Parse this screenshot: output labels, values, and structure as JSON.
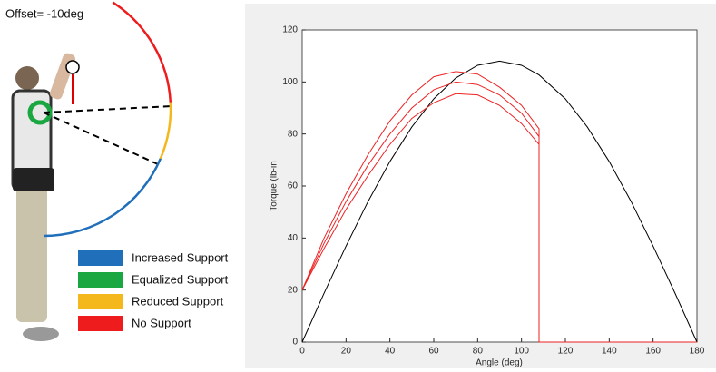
{
  "illustration": {
    "offset_label": "Offset= -10deg",
    "legend": [
      {
        "label": "Increased Support",
        "color": "#1f6fba"
      },
      {
        "label": "Equalized Support",
        "color": "#1aa640"
      },
      {
        "label": "Reduced Support",
        "color": "#f4b81c"
      },
      {
        "label": "No Support",
        "color": "#ee1c1c"
      }
    ]
  },
  "chart_data": {
    "type": "line",
    "xlabel": "Angle (deg)",
    "ylabel": "Torque (lb-in",
    "x": [
      0,
      10,
      20,
      30,
      40,
      50,
      60,
      70,
      80,
      90,
      100,
      108,
      108,
      120,
      130,
      140,
      150,
      160,
      170,
      180
    ],
    "series": [
      {
        "color": "#000000",
        "values": [
          0,
          18.8,
          36.9,
          54,
          69.4,
          82.7,
          93.5,
          101.5,
          106.4,
          108,
          106.4,
          102.7,
          102.7,
          93.5,
          82.7,
          69.4,
          54,
          36.9,
          18.8,
          0
        ]
      },
      {
        "color": "#ee2222",
        "values": [
          20,
          40,
          57,
          72,
          85,
          95,
          102,
          104,
          103,
          98,
          91,
          82,
          0,
          0,
          0,
          0,
          0,
          0,
          0,
          0
        ]
      },
      {
        "color": "#ee2222",
        "values": [
          20,
          38,
          54,
          68,
          80,
          90,
          97,
          100,
          99,
          95,
          88,
          79,
          0,
          0,
          0,
          0,
          0,
          0,
          0,
          0
        ]
      },
      {
        "color": "#ee2222",
        "values": [
          20,
          36,
          51,
          64,
          76,
          86,
          92,
          95.5,
          95,
          91,
          84,
          76,
          0,
          0,
          0,
          0,
          0,
          0,
          0,
          0
        ]
      }
    ],
    "xlim": [
      0,
      180
    ],
    "xticks": [
      0,
      20,
      40,
      60,
      80,
      100,
      120,
      140,
      160,
      180
    ],
    "ylim": [
      0,
      120
    ],
    "yticks": [
      0,
      20,
      40,
      60,
      80,
      100,
      120
    ]
  }
}
